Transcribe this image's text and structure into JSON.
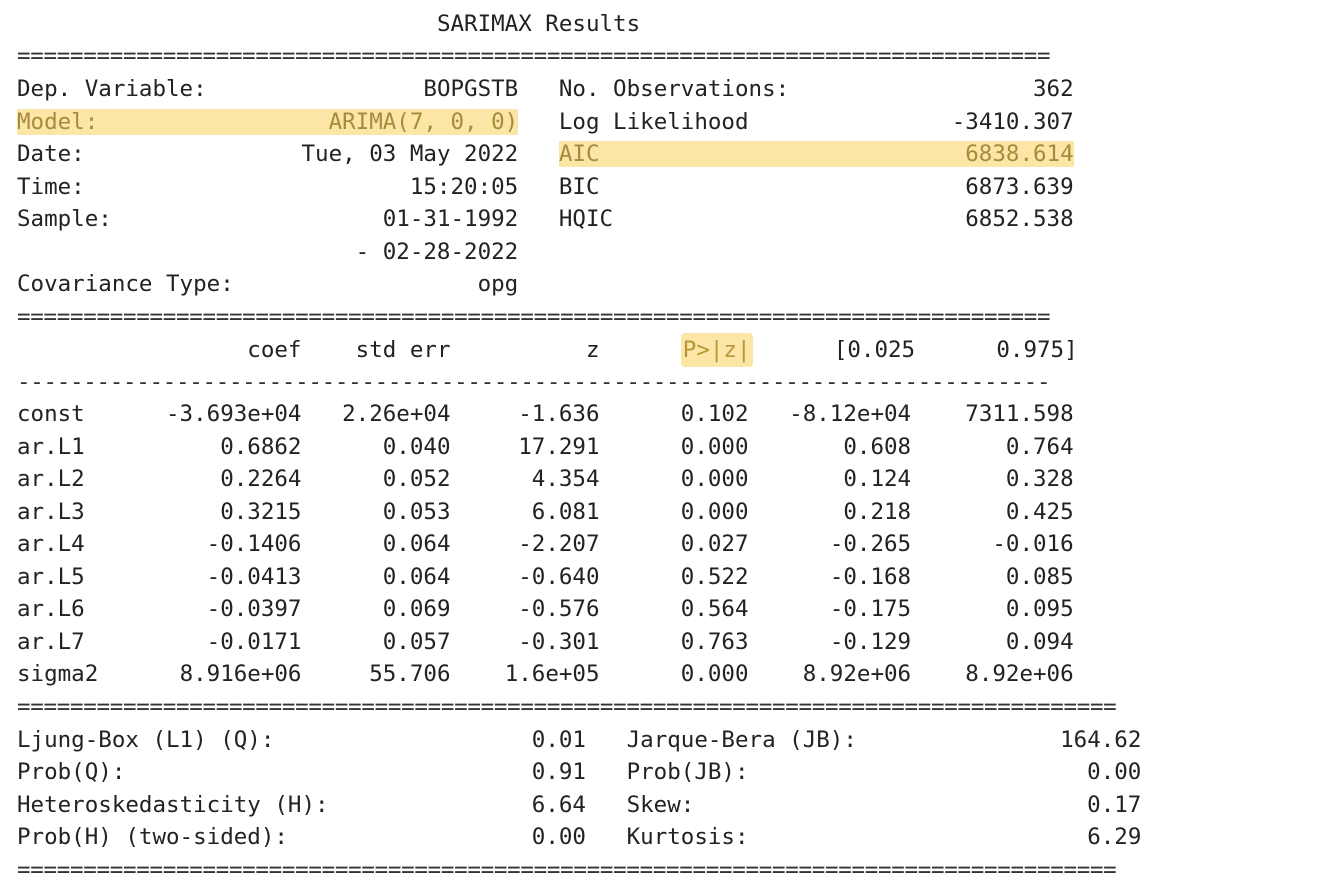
{
  "title": "SARIMAX Results",
  "rules": {
    "double_short": "==============================================================================",
    "single_short": "------------------------------------------------------------------------------",
    "double_long": "==================================================================================="
  },
  "header_rows": [
    {
      "left_label": "Dep. Variable:",
      "left_value": "BOPGSTB",
      "right_label": "No. Observations:",
      "right_value": "362"
    },
    {
      "left_label": "Model:",
      "left_value": "ARIMA(7, 0, 0)",
      "right_label": "Log Likelihood",
      "right_value": "-3410.307"
    },
    {
      "left_label": "Date:",
      "left_value": "Tue, 03 May 2022",
      "right_label": "AIC",
      "right_value": "6838.614"
    },
    {
      "left_label": "Time:",
      "left_value": "15:20:05",
      "right_label": "BIC",
      "right_value": "6873.639"
    },
    {
      "left_label": "Sample:",
      "left_value": "01-31-1992",
      "right_label": "HQIC",
      "right_value": "6852.538"
    },
    {
      "left_label": "",
      "left_value": "- 02-28-2022",
      "right_label": "",
      "right_value": ""
    },
    {
      "left_label": "Covariance Type:",
      "left_value": "opg",
      "right_label": "",
      "right_value": ""
    }
  ],
  "coef_columns": [
    "",
    "coef",
    "std err",
    "z",
    "P>|z|",
    "[0.025",
    "0.975]"
  ],
  "coef_rows": [
    [
      "const",
      "-3.693e+04",
      "2.26e+04",
      "-1.636",
      "0.102",
      "-8.12e+04",
      "7311.598"
    ],
    [
      "ar.L1",
      "0.6862",
      "0.040",
      "17.291",
      "0.000",
      "0.608",
      "0.764"
    ],
    [
      "ar.L2",
      "0.2264",
      "0.052",
      "4.354",
      "0.000",
      "0.124",
      "0.328"
    ],
    [
      "ar.L3",
      "0.3215",
      "0.053",
      "6.081",
      "0.000",
      "0.218",
      "0.425"
    ],
    [
      "ar.L4",
      "-0.1406",
      "0.064",
      "-2.207",
      "0.027",
      "-0.265",
      "-0.016"
    ],
    [
      "ar.L5",
      "-0.0413",
      "0.064",
      "-0.640",
      "0.522",
      "-0.168",
      "0.085"
    ],
    [
      "ar.L6",
      "-0.0397",
      "0.069",
      "-0.576",
      "0.564",
      "-0.175",
      "0.095"
    ],
    [
      "ar.L7",
      "-0.0171",
      "0.057",
      "-0.301",
      "0.763",
      "-0.129",
      "0.094"
    ],
    [
      "sigma2",
      "8.916e+06",
      "55.706",
      "1.6e+05",
      "0.000",
      "8.92e+06",
      "8.92e+06"
    ]
  ],
  "diag_rows": [
    {
      "left_label": "Ljung-Box (L1) (Q):",
      "left_value": "0.01",
      "right_label": "Jarque-Bera (JB):",
      "right_value": "164.62"
    },
    {
      "left_label": "Prob(Q):",
      "left_value": "0.91",
      "right_label": "Prob(JB):",
      "right_value": "0.00"
    },
    {
      "left_label": "Heteroskedasticity (H):",
      "left_value": "6.64",
      "right_label": "Skew:",
      "right_value": "0.17"
    },
    {
      "left_label": "Prob(H) (two-sided):",
      "left_value": "0.00",
      "right_label": "Kurtosis:",
      "right_value": "6.29"
    }
  ],
  "highlight_color": "#fbe6a6"
}
